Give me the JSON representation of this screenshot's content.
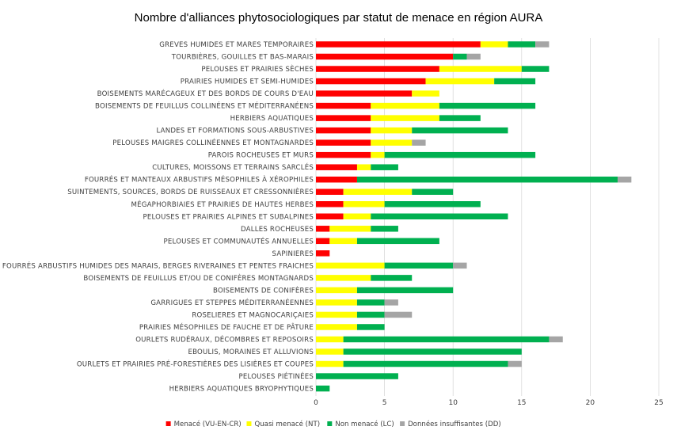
{
  "chart_data": {
    "type": "bar",
    "orientation": "horizontal",
    "stacked": true,
    "title": "Nombre d'alliances phytosociologiques par statut de menace en région AURA",
    "xlim": [
      0,
      25
    ],
    "x_ticks": [
      0,
      5,
      10,
      15,
      20,
      25
    ],
    "grid": true,
    "legend_position": "bottom",
    "categories": [
      "GREVES HUMIDES ET MARES TEMPORAIRES",
      "TOURBIÈRES, GOUILLES ET BAS-MARAIS",
      "PELOUSES ET PRAIRIES SÈCHES",
      "PRAIRIES HUMIDES ET SEMI-HUMIDES",
      "BOISEMENTS MARÉCAGEUX ET DES BORDS DE COURS D'EAU",
      "BOISEMENTS DE FEUILLUS COLLINÉENS ET MÉDITERRANÉENS",
      "HERBIERS AQUATIQUES",
      "LANDES ET FORMATIONS SOUS-ARBUSTIVES",
      "PELOUSES MAIGRES COLLINÉENNES ET MONTAGNARDES",
      "PAROIS ROCHEUSES ET MURS",
      "CULTURES, MOISSONS ET TERRAINS SARCLÉS",
      "FOURRÉS ET MANTEAUX ARBUSTIFS MÉSOPHILES À XÉROPHILES",
      "SUINTEMENTS, SOURCES, BORDS DE RUISSEAUX ET CRESSONNIÈRES",
      "MÉGAPHORBIAIES ET PRAIRIES DE HAUTES HERBES",
      "PELOUSES ET PRAIRIES ALPINES ET SUBALPINES",
      "DALLES ROCHEUSES",
      "PELOUSES ET COMMUNAUTÉS ANNUELLES",
      "SAPINIERES",
      "FOURRÉS ARBUSTIFS HUMIDES DES MARAIS, BERGES RIVERAINES ET PENTES FRAICHES",
      "BOISEMENTS DE FEUILLUS ET/OU DE CONIFÈRES MONTAGNARDS",
      "BOISEMENTS DE CONIFÈRES",
      "GARRIGUES ET STEPPES MÉDITERRANÉENNES",
      "ROSELIERES ET MAGNOCARIÇAIES",
      "PRAIRIES MÉSOPHILES DE FAUCHE ET DE PÂTURE",
      "OURLETS RUDÉRAUX, DÉCOMBRES ET REPOSOIRS",
      "EBOULIS, MORAINES ET ALLUVIONS",
      "OURLETS ET PRAIRIES PRÉ-FORESTIÈRES DES LISIÈRES ET COUPES",
      "PELOUSES PIÉTINÉES",
      "HERBIERS AQUATIQUES BRYOPHYTIQUES"
    ],
    "series": [
      {
        "name": "Menacé (VU-EN-CR)",
        "color": "#ff0000",
        "values": [
          12,
          10,
          9,
          8,
          7,
          4,
          4,
          4,
          4,
          4,
          3,
          3,
          2,
          2,
          2,
          1,
          1,
          1,
          0,
          0,
          0,
          0,
          0,
          0,
          0,
          0,
          0,
          0,
          0
        ]
      },
      {
        "name": "Quasi menacé (NT)",
        "color": "#ffff00",
        "values": [
          2,
          0,
          6,
          5,
          2,
          5,
          5,
          3,
          3,
          1,
          1,
          0,
          5,
          3,
          2,
          3,
          2,
          0,
          5,
          4,
          3,
          3,
          3,
          3,
          2,
          2,
          2,
          0,
          0
        ]
      },
      {
        "name": "Non menacé (LC)",
        "color": "#00b050",
        "values": [
          2,
          1,
          2,
          3,
          0,
          7,
          3,
          7,
          0,
          11,
          2,
          19,
          3,
          7,
          10,
          2,
          6,
          0,
          5,
          3,
          7,
          2,
          2,
          2,
          15,
          13,
          12,
          6,
          1
        ]
      },
      {
        "name": "Données insuffisantes (DD)",
        "color": "#a5a5a5",
        "values": [
          1,
          1,
          0,
          0,
          0,
          0,
          0,
          0,
          1,
          0,
          0,
          1,
          0,
          0,
          0,
          0,
          0,
          0,
          1,
          0,
          0,
          1,
          2,
          0,
          1,
          0,
          1,
          0,
          0
        ]
      }
    ]
  }
}
